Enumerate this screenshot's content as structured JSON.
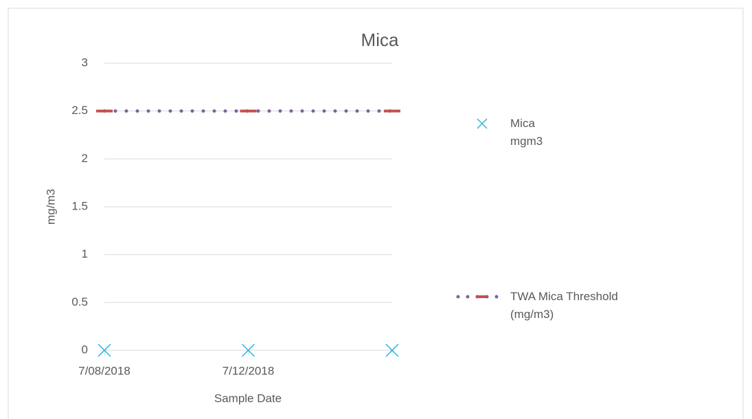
{
  "chart_data": {
    "type": "line",
    "title": "Mica",
    "x_label": "Sample Date",
    "y_label": "mg/m3",
    "categories": [
      "7/08/2018",
      "7/12/2018",
      null
    ],
    "series": [
      {
        "name": "Mica mgm3",
        "color": "#2eb4dc",
        "values": [
          0,
          0,
          0
        ]
      },
      {
        "name": "TWA Mica Threshold (mg/m3)",
        "color": "#7e62a1",
        "marker_color": "#c0504d",
        "values": [
          2.5,
          2.5,
          2.5
        ]
      }
    ],
    "ylim": [
      0,
      3
    ],
    "yticks": [
      0,
      0.5,
      1,
      1.5,
      2,
      2.5,
      3
    ],
    "grid": true
  }
}
